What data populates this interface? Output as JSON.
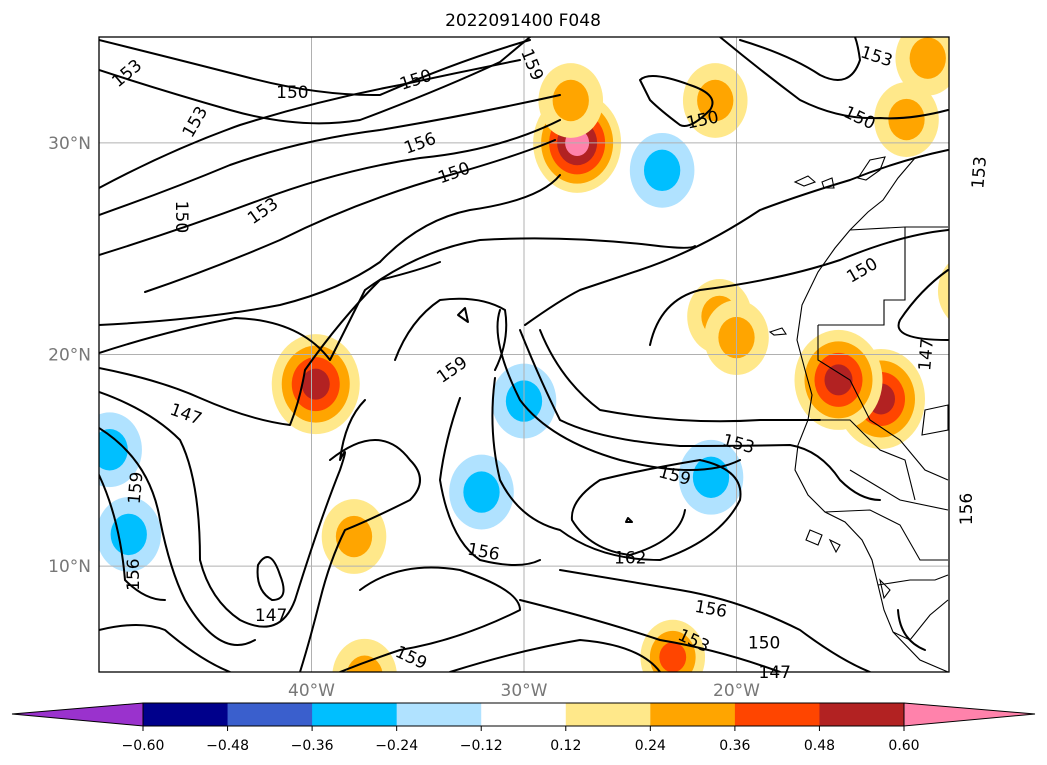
{
  "chart_data": {
    "type": "contour_map",
    "title": "2022091400 F048",
    "lat_ticks": [
      "30°N",
      "20°N",
      "10°N"
    ],
    "lon_ticks": [
      "40°W",
      "30°W",
      "20°W"
    ],
    "lat_values": [
      30,
      20,
      10
    ],
    "lon_values": [
      -40,
      -30,
      -20
    ],
    "lon_range": [
      -50,
      -10
    ],
    "lat_range": [
      5,
      35
    ],
    "grid": true,
    "contour_interval": 3,
    "contour_levels": [
      147,
      150,
      153,
      156,
      159,
      162
    ],
    "contour_labels": [
      {
        "text": "153",
        "lon": -48.7,
        "lat": 33.3,
        "angle": -40
      },
      {
        "text": "150",
        "lon": -40.9,
        "lat": 32.4,
        "angle": 0
      },
      {
        "text": "150",
        "lon": -35.1,
        "lat": 33.0,
        "angle": -18
      },
      {
        "text": "159",
        "lon": -29.6,
        "lat": 33.7,
        "angle": 68
      },
      {
        "text": "153",
        "lon": -45.5,
        "lat": 31.0,
        "angle": -60
      },
      {
        "text": "156",
        "lon": -34.9,
        "lat": 30.0,
        "angle": -20
      },
      {
        "text": "150",
        "lon": -46.1,
        "lat": 26.5,
        "angle": 90
      },
      {
        "text": "150",
        "lon": -33.3,
        "lat": 28.6,
        "angle": -20
      },
      {
        "text": "153",
        "lon": -42.3,
        "lat": 26.8,
        "angle": -35
      },
      {
        "text": "153",
        "lon": -13.4,
        "lat": 34.1,
        "angle": 18
      },
      {
        "text": "150",
        "lon": -21.6,
        "lat": 31.1,
        "angle": -12
      },
      {
        "text": "150",
        "lon": -14.2,
        "lat": 31.2,
        "angle": 25
      },
      {
        "text": "153",
        "lon": -8.6,
        "lat": 28.6,
        "angle": -85
      },
      {
        "text": "150",
        "lon": -14.1,
        "lat": 24.0,
        "angle": -30
      },
      {
        "text": "147",
        "lon": -11.1,
        "lat": 20.0,
        "angle": -85
      },
      {
        "text": "159",
        "lon": -33.4,
        "lat": 19.3,
        "angle": -35
      },
      {
        "text": "147",
        "lon": -45.9,
        "lat": 17.2,
        "angle": 20
      },
      {
        "text": "153",
        "lon": -19.9,
        "lat": 15.8,
        "angle": 15
      },
      {
        "text": "159",
        "lon": -22.9,
        "lat": 14.3,
        "angle": 15
      },
      {
        "text": "159",
        "lon": -48.3,
        "lat": 13.7,
        "angle": -85
      },
      {
        "text": "156",
        "lon": -9.2,
        "lat": 12.7,
        "angle": -90
      },
      {
        "text": "156",
        "lon": -31.9,
        "lat": 10.7,
        "angle": 10
      },
      {
        "text": "162",
        "lon": -25.0,
        "lat": 10.4,
        "angle": 0
      },
      {
        "text": "156",
        "lon": -48.4,
        "lat": 9.6,
        "angle": -90
      },
      {
        "text": "156",
        "lon": -21.2,
        "lat": 8.0,
        "angle": 10
      },
      {
        "text": "147",
        "lon": -41.9,
        "lat": 7.7,
        "angle": 0
      },
      {
        "text": "153",
        "lon": -22.0,
        "lat": 6.5,
        "angle": 25
      },
      {
        "text": "150",
        "lon": -18.7,
        "lat": 6.4,
        "angle": 0
      },
      {
        "text": "159",
        "lon": -35.3,
        "lat": 5.7,
        "angle": 25
      },
      {
        "text": "147",
        "lon": -18.2,
        "lat": 5.0,
        "angle": 0
      }
    ],
    "colorbar": {
      "ticks": [
        "−0.60",
        "−0.48",
        "−0.36",
        "−0.24",
        "−0.12",
        "0.12",
        "0.24",
        "0.36",
        "0.48",
        "0.60"
      ],
      "colors": [
        "#9a32cd",
        "#00008b",
        "#3a5fcd",
        "#00bfff",
        "#b0e2ff",
        "#ffffff",
        "#ffe88a",
        "#ffa500",
        "#ff4500",
        "#b22222",
        "#ff82ab"
      ],
      "extend": "both"
    },
    "shaded_anomalies": [
      {
        "lon": -39.8,
        "lat": 18.6,
        "level": 0.48
      },
      {
        "lon": -13.2,
        "lat": 17.9,
        "level": 0.48
      },
      {
        "lon": -27.5,
        "lat": 30.0,
        "level": 0.6
      },
      {
        "lon": -27.8,
        "lat": 32.0,
        "level": 0.24
      },
      {
        "lon": -15.2,
        "lat": 18.8,
        "level": 0.48
      },
      {
        "lon": -12.0,
        "lat": 31.1,
        "level": 0.24
      },
      {
        "lon": -11.0,
        "lat": 34.0,
        "level": 0.24
      },
      {
        "lon": -21.0,
        "lat": 32.0,
        "level": 0.24
      },
      {
        "lon": -9.0,
        "lat": 23.0,
        "level": 0.24
      },
      {
        "lon": -20.8,
        "lat": 21.8,
        "level": 0.24
      },
      {
        "lon": -20.0,
        "lat": 20.8,
        "level": 0.24
      },
      {
        "lon": -38.0,
        "lat": 11.4,
        "level": 0.24
      },
      {
        "lon": -23.0,
        "lat": 5.7,
        "level": 0.36
      },
      {
        "lon": -37.5,
        "lat": 4.8,
        "level": 0.24
      },
      {
        "lon": -21.2,
        "lat": 14.2,
        "level": -0.36
      },
      {
        "lon": -49.5,
        "lat": 15.5,
        "level": -0.36
      },
      {
        "lon": -48.6,
        "lat": 11.5,
        "level": -0.36
      },
      {
        "lon": -32.0,
        "lat": 13.5,
        "level": -0.36
      },
      {
        "lon": -23.5,
        "lat": 28.7,
        "level": -0.36
      },
      {
        "lon": -30.0,
        "lat": 17.8,
        "level": -0.36
      }
    ]
  }
}
